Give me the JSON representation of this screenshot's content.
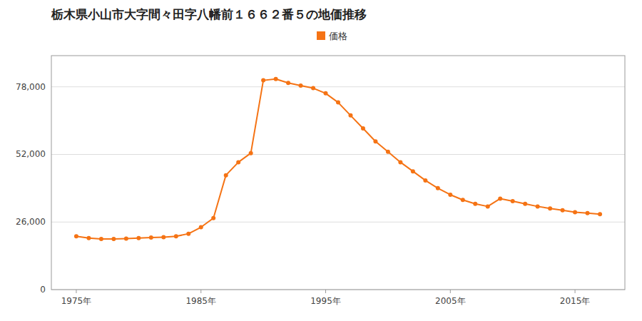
{
  "chart_data": {
    "type": "line",
    "title": "栃木県小山市大字間々田字八幡前１６６２番５の地価推移",
    "x": [
      1975,
      1976,
      1977,
      1978,
      1979,
      1980,
      1981,
      1982,
      1983,
      1984,
      1985,
      1986,
      1987,
      1988,
      1989,
      1990,
      1991,
      1992,
      1993,
      1994,
      1995,
      1996,
      1997,
      1998,
      1999,
      2000,
      2001,
      2002,
      2003,
      2004,
      2005,
      2006,
      2007,
      2008,
      2009,
      2010,
      2011,
      2012,
      2013,
      2014,
      2015,
      2016,
      2017
    ],
    "series": [
      {
        "name": "価格",
        "color": "#f57314",
        "marker": "circle",
        "values": [
          20500,
          19800,
          19500,
          19500,
          19600,
          19800,
          20000,
          20200,
          20500,
          21500,
          24000,
          27500,
          44000,
          49000,
          52500,
          80500,
          81000,
          79500,
          78500,
          77500,
          75500,
          72000,
          67000,
          62000,
          57000,
          53000,
          49000,
          45500,
          42000,
          39000,
          36500,
          34500,
          33000,
          32000,
          35000,
          34000,
          33000,
          32000,
          31200,
          30500,
          29800,
          29400,
          29000
        ]
      }
    ],
    "xlim": [
      1973,
      2019
    ],
    "xticks": [
      {
        "value": 1975,
        "label": "1975年"
      },
      {
        "value": 1985,
        "label": "1985年"
      },
      {
        "value": 1995,
        "label": "1995年"
      },
      {
        "value": 2005,
        "label": "2005年"
      },
      {
        "value": 2015,
        "label": "2015年"
      }
    ],
    "ylim": [
      0,
      90000
    ],
    "yticks": [
      0,
      {
        "value": 26000,
        "label": "26,000"
      },
      {
        "value": 52000,
        "label": "52,000"
      },
      {
        "value": 78000,
        "label": "78,000"
      }
    ],
    "grid": true,
    "legend": "top"
  }
}
